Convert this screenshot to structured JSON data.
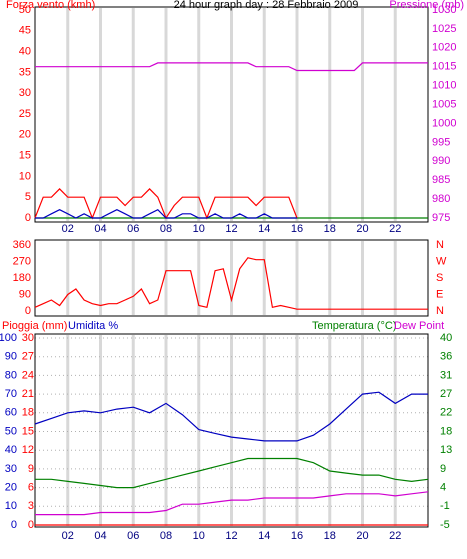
{
  "chart_data": [
    {
      "type": "line",
      "title": "24 hour graph day : 28 Febbraio 2009",
      "ylabel": "Forza vento (kmh)",
      "y2label": "Pressione (mb)",
      "ycolor": "#ff0000",
      "y2color": "#d000d0",
      "xlim": [
        0,
        24
      ],
      "xticks": [
        {
          "value": 2,
          "label": "02"
        },
        {
          "value": 4,
          "label": "04"
        },
        {
          "value": 6,
          "label": "06"
        },
        {
          "value": 8,
          "label": "08"
        },
        {
          "value": 10,
          "label": "10"
        },
        {
          "value": 12,
          "label": "12"
        },
        {
          "value": 14,
          "label": "14"
        },
        {
          "value": 16,
          "label": "16"
        },
        {
          "value": 18,
          "label": "18"
        },
        {
          "value": 20,
          "label": "20"
        },
        {
          "value": 22,
          "label": "22"
        }
      ],
      "ylim": [
        0,
        50
      ],
      "yticks": [
        0,
        5,
        10,
        15,
        20,
        25,
        30,
        35,
        40,
        45,
        50
      ],
      "y2lim": [
        975,
        1030
      ],
      "y2ticks": [
        975,
        980,
        985,
        990,
        995,
        1000,
        1005,
        1010,
        1015,
        1020,
        1025,
        1030
      ],
      "vgrid": true,
      "hgrid": false,
      "x": [
        0,
        0.5,
        1,
        1.5,
        2,
        2.5,
        3,
        3.5,
        4,
        4.5,
        5,
        5.5,
        6,
        6.5,
        7,
        7.5,
        8,
        8.5,
        9,
        9.5,
        10,
        10.5,
        11,
        11.5,
        12,
        12.5,
        13,
        13.5,
        14,
        14.5,
        15,
        15.5,
        16,
        16.5,
        17,
        17.5,
        18,
        18.5,
        19,
        19.5,
        20,
        20.5,
        21,
        21.5,
        22,
        22.5,
        23,
        23.5,
        24
      ],
      "series": [
        {
          "color": "#008000",
          "values": [
            0,
            0,
            0,
            0,
            0,
            0,
            0,
            0,
            0,
            0,
            0,
            0,
            0,
            0,
            0,
            0,
            0,
            0,
            0,
            0,
            0,
            0,
            0,
            0,
            0,
            0,
            0,
            0,
            0,
            0,
            0,
            0,
            0,
            0,
            0,
            0,
            0,
            0,
            0,
            0,
            0,
            0,
            0,
            0,
            0,
            0,
            0,
            0,
            0
          ]
        },
        {
          "color": "#ff0000",
          "values": [
            0,
            5,
            5,
            7,
            5,
            5,
            5,
            0,
            5,
            5,
            5,
            3,
            5,
            5,
            7,
            5,
            0,
            3,
            5,
            5,
            5,
            0,
            5,
            5,
            5,
            5,
            5,
            3,
            5,
            5,
            5,
            5,
            0,
            null,
            null,
            null,
            null,
            null,
            null,
            null,
            null,
            null,
            null,
            null,
            null,
            null,
            null,
            null,
            null
          ]
        },
        {
          "color": "#0000c0",
          "values": [
            0,
            0,
            1,
            2,
            1,
            0,
            1,
            0,
            0,
            1,
            2,
            1,
            0,
            0,
            1,
            2,
            0,
            0,
            1,
            1,
            0,
            0,
            1,
            0,
            0,
            1,
            0,
            0,
            1,
            0,
            0,
            0,
            0,
            null,
            null,
            null,
            null,
            null,
            null,
            null,
            null,
            null,
            null,
            null,
            null,
            null,
            null,
            null,
            null
          ]
        },
        {
          "color": "#d000d0",
          "axis": "y2",
          "values": [
            1015,
            1015,
            1015,
            1015,
            1015,
            1015,
            1015,
            1015,
            1015,
            1015,
            1015,
            1015,
            1015,
            1015,
            1015,
            1016,
            1016,
            1016,
            1016,
            1016,
            1016,
            1016,
            1016,
            1016,
            1016,
            1016,
            1016,
            1015,
            1015,
            1015,
            1015,
            1015,
            1014,
            1014,
            1014,
            1014,
            1014,
            1014,
            1014,
            1014,
            1016,
            1016,
            1016,
            1016,
            1016,
            1016,
            1016,
            1016,
            1016
          ]
        }
      ]
    },
    {
      "type": "line",
      "ycolor": "#ff0000",
      "y2color": "#ff0000",
      "xlim": [
        0,
        24
      ],
      "xticks": [
        2,
        4,
        6,
        8,
        10,
        12,
        14,
        16,
        18,
        20,
        22
      ],
      "ylim": [
        0,
        360
      ],
      "yticks": [
        0,
        90,
        180,
        270,
        360
      ],
      "y2lim": [
        0,
        360
      ],
      "y2ticks": [
        {
          "value": 0,
          "label": "N"
        },
        {
          "value": 90,
          "label": "E"
        },
        {
          "value": 180,
          "label": "S"
        },
        {
          "value": 270,
          "label": "W"
        },
        {
          "value": 360,
          "label": "N"
        }
      ],
      "vgrid": true,
      "hgrid": false,
      "x": [
        0,
        0.5,
        1,
        1.5,
        2,
        2.5,
        3,
        3.5,
        4,
        4.5,
        5,
        5.5,
        6,
        6.5,
        7,
        7.5,
        8,
        8.5,
        9,
        9.5,
        10,
        10.5,
        11,
        11.5,
        12,
        12.5,
        13,
        13.5,
        14,
        14.5,
        15,
        15.5,
        16,
        16.5,
        17,
        17.5,
        18,
        18.5,
        19,
        19.5,
        20,
        20.5,
        21,
        21.5,
        22,
        22.5,
        23,
        23.5,
        24
      ],
      "series": [
        {
          "color": "#ff0000",
          "values": [
            20,
            40,
            60,
            30,
            90,
            120,
            60,
            40,
            30,
            40,
            40,
            60,
            80,
            120,
            40,
            60,
            220,
            220,
            220,
            220,
            30,
            20,
            220,
            230,
            60,
            230,
            290,
            280,
            280,
            20,
            30,
            20,
            10,
            10,
            10,
            10,
            10,
            10,
            10,
            10,
            10,
            10,
            10,
            10,
            10,
            10,
            10,
            10,
            10
          ]
        }
      ]
    },
    {
      "type": "line",
      "ycolor": "#0000c0",
      "y2color": "#008000",
      "y3color": "#ff0000",
      "xlim": [
        0,
        24
      ],
      "xticks": [
        {
          "value": 2,
          "label": "02"
        },
        {
          "value": 4,
          "label": "04"
        },
        {
          "value": 6,
          "label": "06"
        },
        {
          "value": 8,
          "label": "08"
        },
        {
          "value": 10,
          "label": "10"
        },
        {
          "value": 12,
          "label": "12"
        },
        {
          "value": 14,
          "label": "14"
        },
        {
          "value": 16,
          "label": "16"
        },
        {
          "value": 18,
          "label": "18"
        },
        {
          "value": 20,
          "label": "20"
        },
        {
          "value": 22,
          "label": "22"
        }
      ],
      "ylim": [
        0,
        100
      ],
      "yticks": [
        0,
        10,
        20,
        30,
        40,
        50,
        60,
        70,
        80,
        90,
        100
      ],
      "y3lim": [
        0,
        30
      ],
      "y3ticks": [
        0,
        3,
        6,
        9,
        12,
        15,
        18,
        21,
        24,
        27,
        30
      ],
      "y2lim": [
        -5,
        40
      ],
      "y2ticks": [
        -5,
        {
          "value": -0.5,
          "label": "-1"
        },
        4,
        {
          "value": 8.5,
          "label": "9"
        },
        13,
        {
          "value": 17.5,
          "label": "18"
        },
        22,
        {
          "value": 26.5,
          "label": "27"
        },
        31,
        {
          "value": 35.5,
          "label": "36"
        },
        40
      ],
      "vgrid": true,
      "hgrid": true,
      "x": [
        0,
        1,
        2,
        3,
        4,
        5,
        6,
        7,
        8,
        9,
        10,
        11,
        12,
        13,
        14,
        15,
        16,
        17,
        18,
        19,
        20,
        21,
        22,
        23,
        24
      ],
      "series": [
        {
          "name": "Pioggia (mm)",
          "color": "#ff0000",
          "axis": "y3",
          "values": [
            0,
            0,
            0,
            0,
            0,
            0,
            0,
            0,
            0,
            0,
            0,
            0,
            0,
            0,
            0,
            0,
            0,
            0,
            0,
            0,
            0,
            0,
            0,
            0,
            0
          ]
        },
        {
          "name": "Umidita %",
          "color": "#0000c0",
          "values": [
            54,
            57,
            60,
            61,
            60,
            62,
            63,
            60,
            65,
            59,
            51,
            49,
            47,
            46,
            45,
            45,
            45,
            48,
            54,
            62,
            70,
            71,
            65,
            70,
            70
          ]
        },
        {
          "name": "Temperatura (°C)",
          "color": "#008000",
          "axis": "y2",
          "values": [
            6,
            6,
            5.5,
            5,
            4.5,
            4,
            4,
            5,
            6,
            7,
            8,
            9,
            10,
            11,
            11,
            11,
            11,
            10,
            8,
            7.5,
            7,
            7,
            6,
            5.5,
            6
          ]
        },
        {
          "name": "Dew Point",
          "color": "#d000d0",
          "axis": "y2",
          "values": [
            -2.5,
            -2.5,
            -2.5,
            -2.5,
            -2,
            -2,
            -2,
            -2,
            -1.5,
            0,
            0,
            0.5,
            1,
            1,
            1.5,
            1.5,
            1.5,
            1.5,
            2,
            2.5,
            2.5,
            2.5,
            2,
            2.5,
            3
          ]
        }
      ]
    }
  ]
}
